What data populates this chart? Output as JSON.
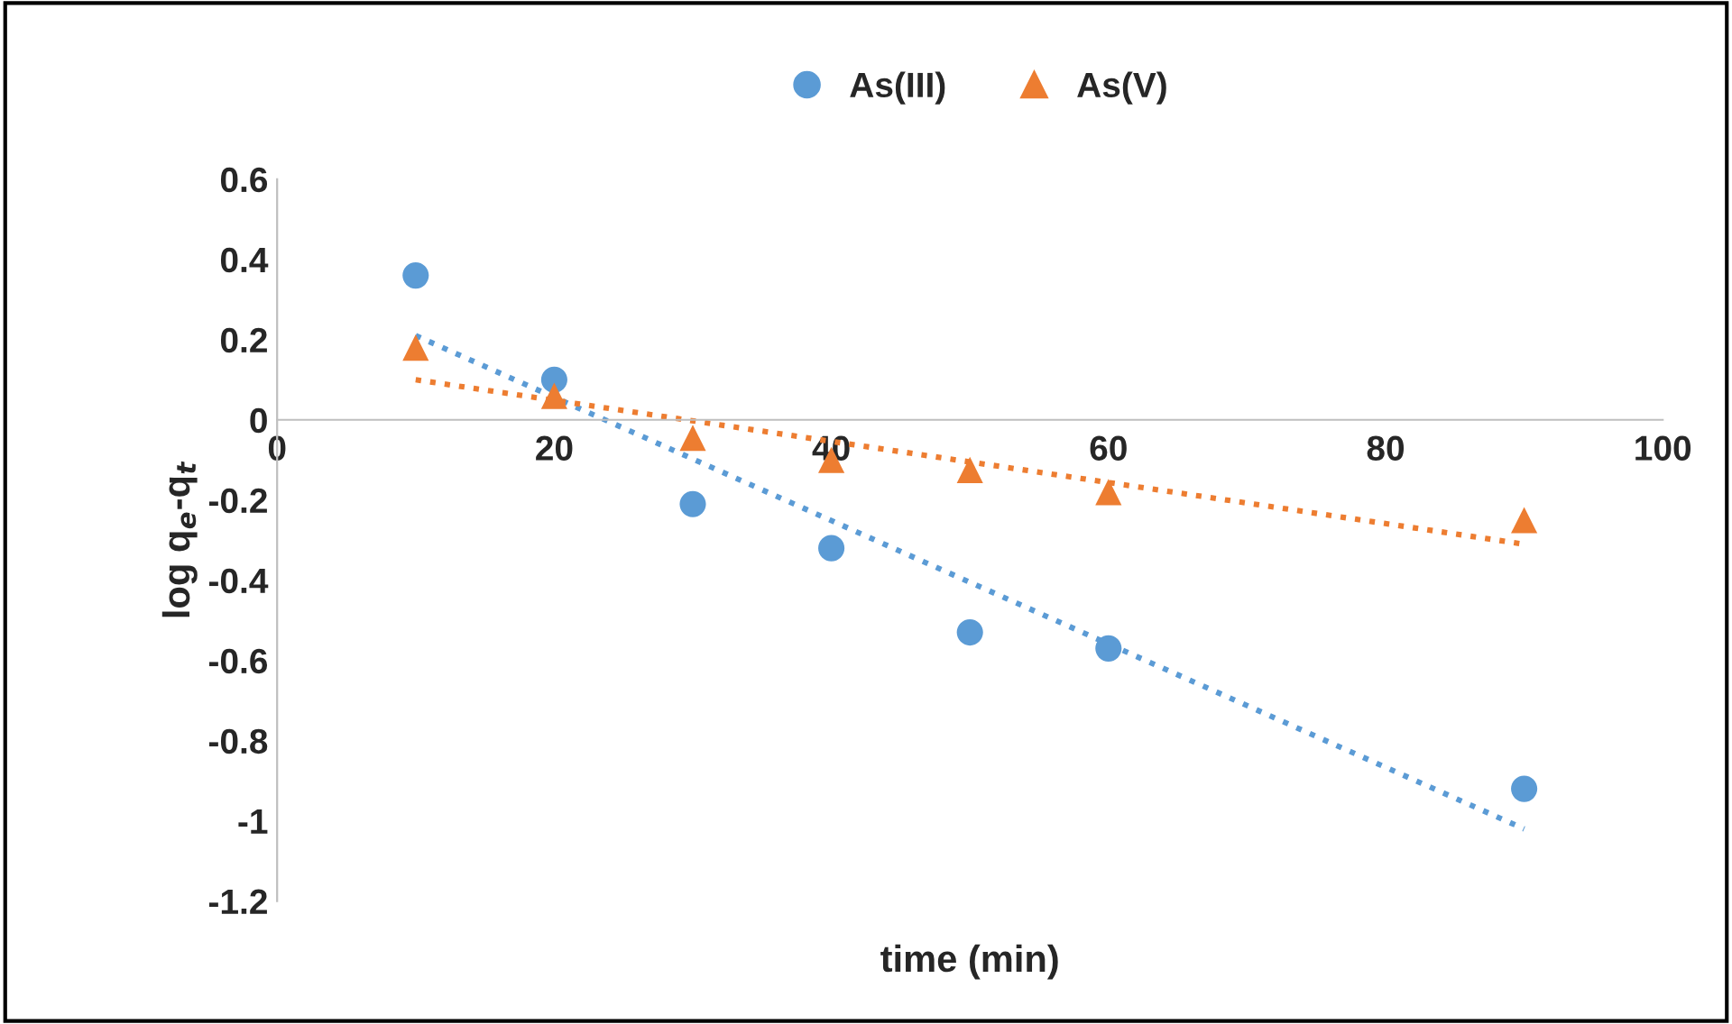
{
  "chart_data": {
    "type": "scatter",
    "xlabel": "time (min)",
    "ylabel": "log q$_{e}$-q$_{t}$",
    "xlim": [
      0,
      100
    ],
    "xticks": [
      0,
      20,
      40,
      60,
      80,
      100
    ],
    "ylim": [
      -1.2,
      0.6
    ],
    "yticks": [
      -1.2,
      -1,
      -0.8,
      -0.6,
      -0.4,
      -0.2,
      0,
      0.2,
      0.4,
      0.6
    ],
    "grid": false,
    "legend": "top",
    "series": [
      {
        "name": "As(III)",
        "marker": "circle",
        "color": "#5b9bd5",
        "x": [
          10,
          20,
          30,
          40,
          50,
          60,
          90
        ],
        "values": [
          0.36,
          0.1,
          -0.21,
          -0.32,
          -0.53,
          -0.57,
          -0.92
        ]
      },
      {
        "name": "As(V)",
        "marker": "triangle",
        "color": "#ed7d31",
        "x": [
          10,
          20,
          30,
          40,
          50,
          60,
          90
        ],
        "values": [
          0.18,
          0.06,
          -0.045,
          -0.1,
          -0.125,
          -0.18,
          -0.25
        ]
      },
      {
        "type": "line",
        "marker": "none",
        "line_style": "dotted",
        "color": "#5b9bd5",
        "x": [
          10,
          90
        ],
        "values": [
          0.21,
          -1.02
        ]
      },
      {
        "type": "line",
        "marker": "none",
        "line_style": "dotted",
        "color": "#ed7d31",
        "x": [
          10,
          90
        ],
        "values": [
          0.1,
          -0.31
        ]
      }
    ]
  }
}
